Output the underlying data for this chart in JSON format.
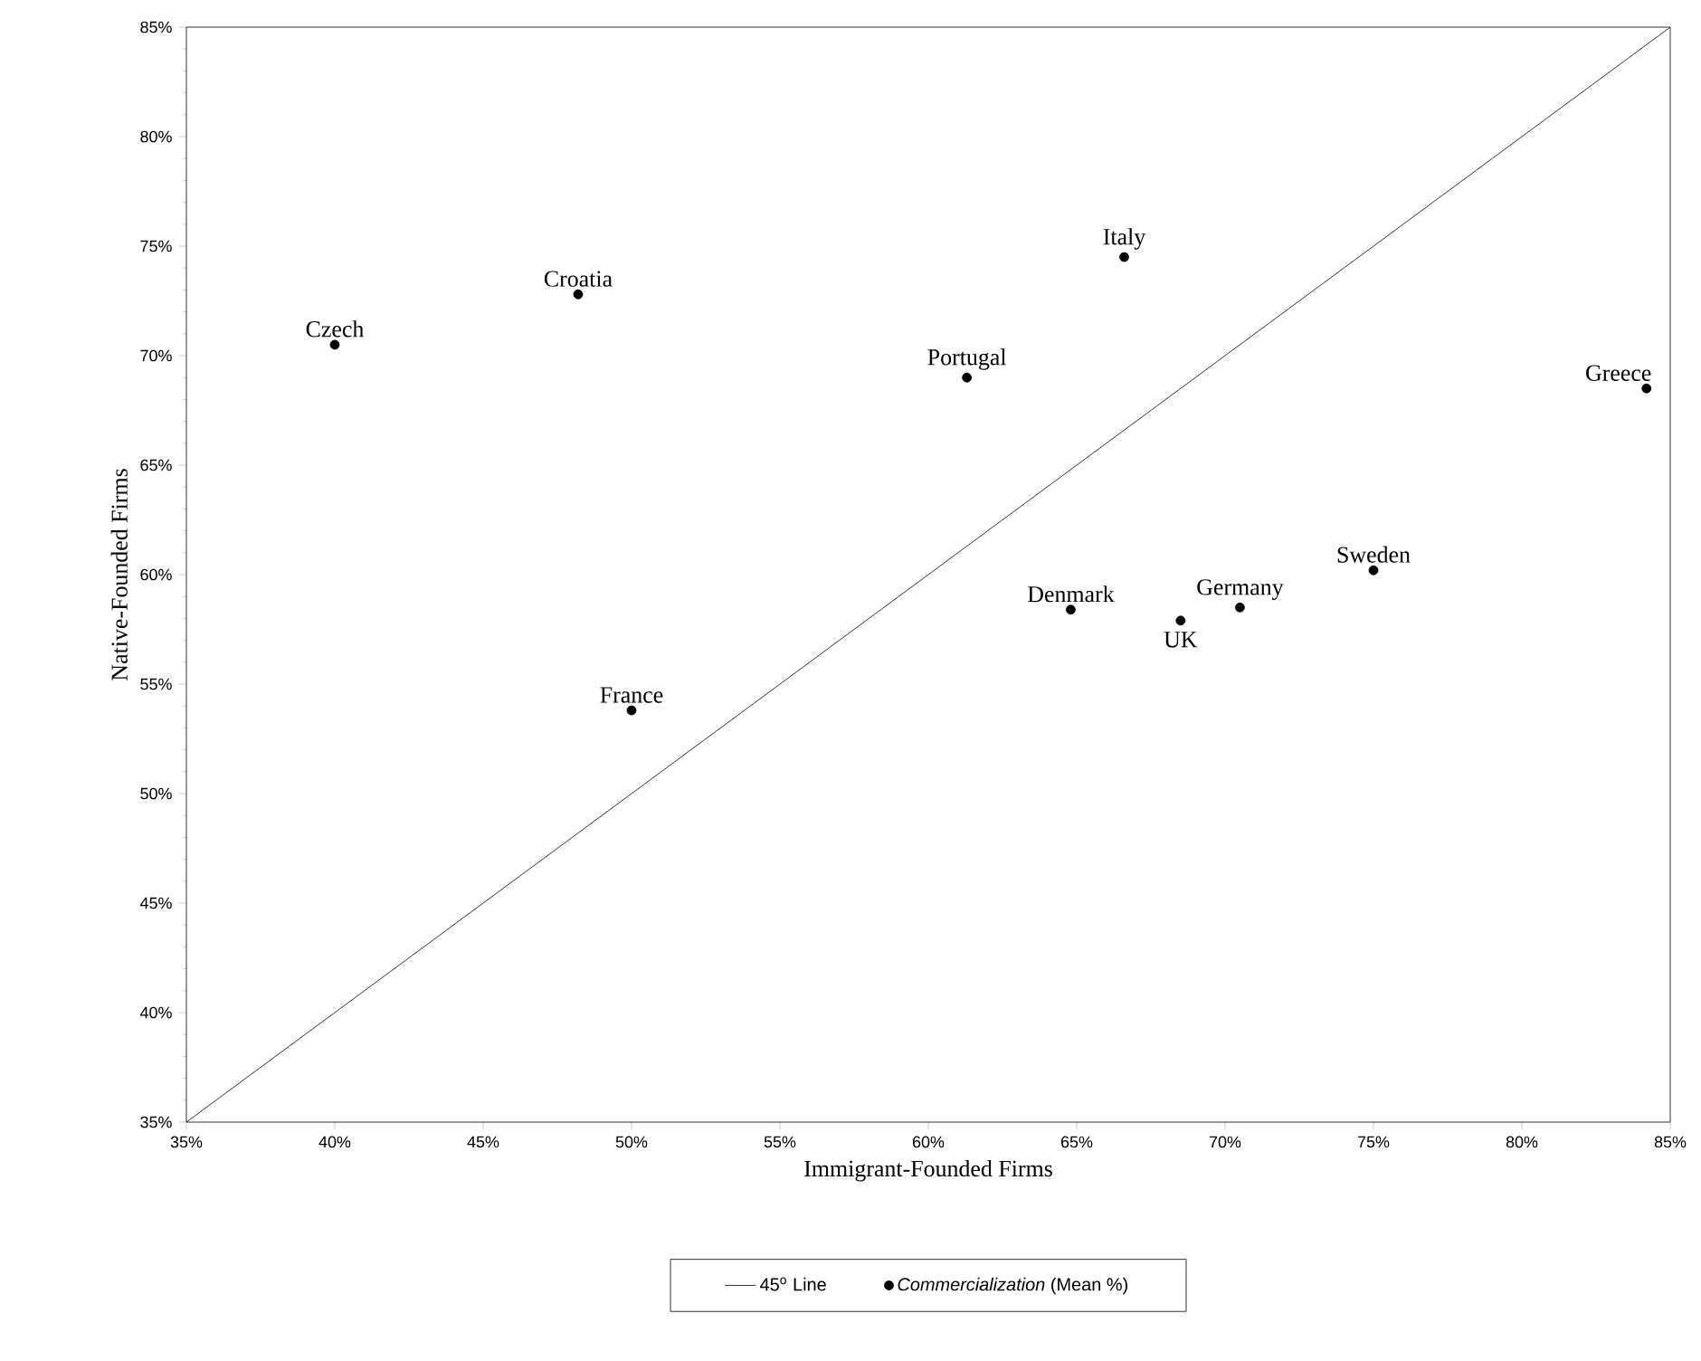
{
  "chart_data": {
    "type": "scatter",
    "xlabel": "Immigrant-Founded Firms",
    "ylabel": "Native-Founded Firms",
    "xlim": [
      35,
      85
    ],
    "ylim": [
      35,
      85
    ],
    "xticks": [
      {
        "value": 35,
        "label": "35%"
      },
      {
        "value": 40,
        "label": "40%"
      },
      {
        "value": 45,
        "label": "45%"
      },
      {
        "value": 50,
        "label": "50%"
      },
      {
        "value": 55,
        "label": "55%"
      },
      {
        "value": 60,
        "label": "60%"
      },
      {
        "value": 65,
        "label": "65%"
      },
      {
        "value": 70,
        "label": "70%"
      },
      {
        "value": 75,
        "label": "75%"
      },
      {
        "value": 80,
        "label": "80%"
      },
      {
        "value": 85,
        "label": "85%"
      }
    ],
    "yticks": [
      {
        "value": 35,
        "label": "35%"
      },
      {
        "value": 40,
        "label": "40%"
      },
      {
        "value": 45,
        "label": "45%"
      },
      {
        "value": 50,
        "label": "50%"
      },
      {
        "value": 55,
        "label": "55%"
      },
      {
        "value": 60,
        "label": "60%"
      },
      {
        "value": 65,
        "label": "65%"
      },
      {
        "value": 70,
        "label": "70%"
      },
      {
        "value": 75,
        "label": "75%"
      },
      {
        "value": 80,
        "label": "80%"
      },
      {
        "value": 85,
        "label": "85%"
      }
    ],
    "legend": "bottom",
    "grid": false,
    "series": [
      {
        "name": "45$^{o}$ Line",
        "type": "line",
        "color": "#000000",
        "marker": "none",
        "x": [
          35,
          85
        ],
        "values": [
          35,
          85
        ]
      },
      {
        "name": "*Commercialization* (Mean %)",
        "color": "#000000",
        "marker": "circle",
        "x": [
          40,
          48.2,
          66.6,
          61.3,
          84.2,
          75.0,
          64.8,
          68.5,
          70.5,
          50.0
        ],
        "values": [
          70.5,
          72.8,
          74.5,
          69.0,
          68.5,
          60.2,
          58.4,
          57.9,
          58.5,
          53.8
        ]
      }
    ],
    "annotations": [
      {
        "text": "Czech",
        "x": 40,
        "y": 70.5
      },
      {
        "text": "Croatia",
        "x": 48.2,
        "y": 72.8
      },
      {
        "text": "Italy",
        "x": 66.6,
        "y": 74.5
      },
      {
        "text": "Portugal",
        "x": 61.3,
        "y": 69.0
      },
      {
        "text": "Greece",
        "x": 84.2,
        "y": 68.5
      },
      {
        "text": "Sweden",
        "x": 75.0,
        "y": 60.2
      },
      {
        "text": "Denmark",
        "x": 64.8,
        "y": 58.4
      },
      {
        "text": "UK",
        "x": 68.5,
        "y": 57.9
      },
      {
        "text": "Germany",
        "x": 70.5,
        "y": 58.5
      },
      {
        "text": "France",
        "x": 50.0,
        "y": 53.8
      }
    ]
  }
}
